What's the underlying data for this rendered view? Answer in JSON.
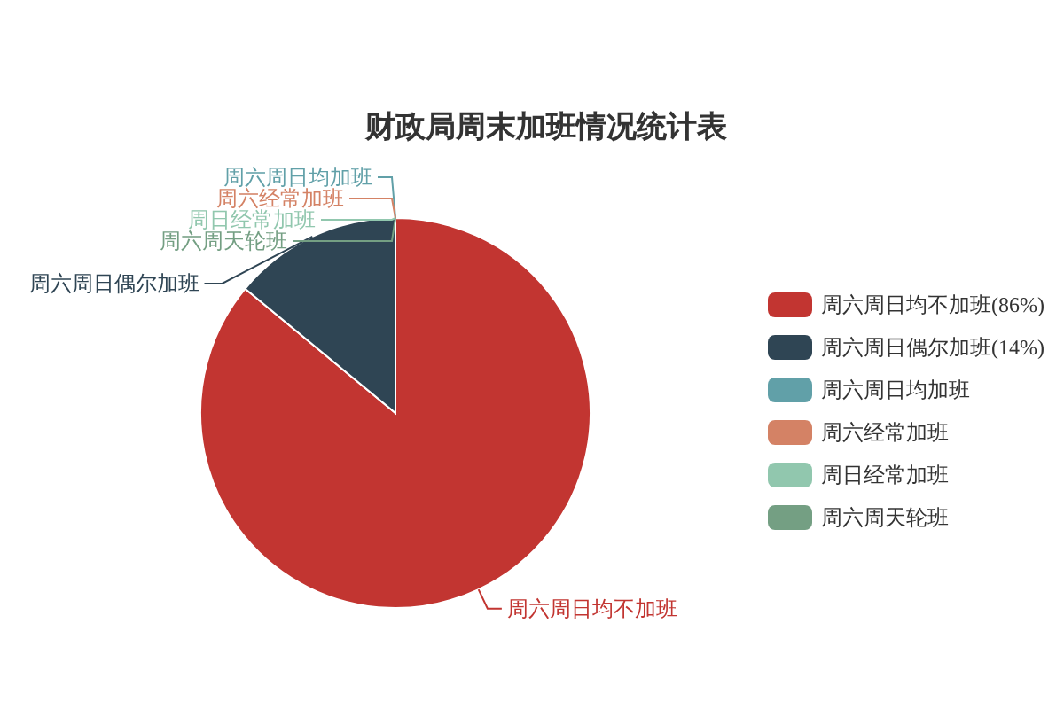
{
  "chart_data": {
    "type": "pie",
    "title": "财政局周末加班情况统计表",
    "categories": [
      "周六周日均不加班(86%)",
      "周六周日偶尔加班(14%)",
      "周六周日均加班",
      "周六经常加班",
      "周日经常加班",
      "周六周天轮班"
    ],
    "values": [
      86,
      14,
      0,
      0,
      0,
      0
    ],
    "colors": [
      "#c23531",
      "#2f4554",
      "#61a0a8",
      "#d48265",
      "#91c7ae",
      "#749f83"
    ],
    "value_labels": [
      "周六周日均不加班",
      "周六周日偶尔加班",
      "周六周日均加班",
      "周六经常加班",
      "周日经常加班",
      "周六周天轮班"
    ],
    "legend": "right"
  }
}
